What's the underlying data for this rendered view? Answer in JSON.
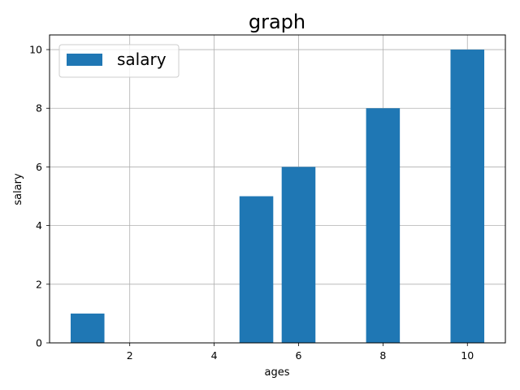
{
  "chart_data": {
    "type": "bar",
    "title": "graph",
    "xlabel": "ages",
    "ylabel": "salary",
    "x": [
      1,
      5,
      6,
      8,
      10
    ],
    "series": [
      {
        "name": "salary",
        "values": [
          1,
          5,
          6,
          8,
          10
        ],
        "color": "#1f77b4"
      }
    ],
    "xlim": [
      0.1,
      10.9
    ],
    "ylim": [
      0,
      10.5
    ],
    "xticks": [
      2,
      4,
      6,
      8,
      10
    ],
    "yticks": [
      0,
      2,
      4,
      6,
      8,
      10
    ],
    "bar_width": 0.8,
    "grid": true,
    "legend": {
      "position": "top-left",
      "entries": [
        "salary"
      ]
    }
  }
}
